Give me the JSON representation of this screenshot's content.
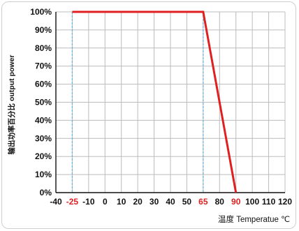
{
  "chart_data": {
    "type": "line",
    "ylabel": "输出功率百分比 output power",
    "xlabel": "温度 Temperatue ℃",
    "xlim": [
      -40,
      120
    ],
    "ylim": [
      0,
      100
    ],
    "y_ticks": [
      "0%",
      "10%",
      "20%",
      "30%",
      "40%",
      "50%",
      "60%",
      "70%",
      "80%",
      "90%",
      "100%"
    ],
    "x_ticks": [
      -40,
      -25,
      -10,
      0,
      10,
      20,
      30,
      40,
      50,
      65,
      80,
      90,
      100,
      110,
      120
    ],
    "highlight_ticks": [
      -25,
      65,
      90
    ],
    "reference_lines_x": [
      -25,
      65
    ],
    "grid": true,
    "series": [
      {
        "x": [
          -25,
          65,
          90
        ],
        "y": [
          100,
          100,
          0
        ]
      }
    ],
    "colors": {
      "line": "#e02020",
      "grid": "#bcbcbc",
      "reference": "#6ab4e0",
      "highlight_tick": "#e02020",
      "axis_text": "#111111"
    }
  }
}
